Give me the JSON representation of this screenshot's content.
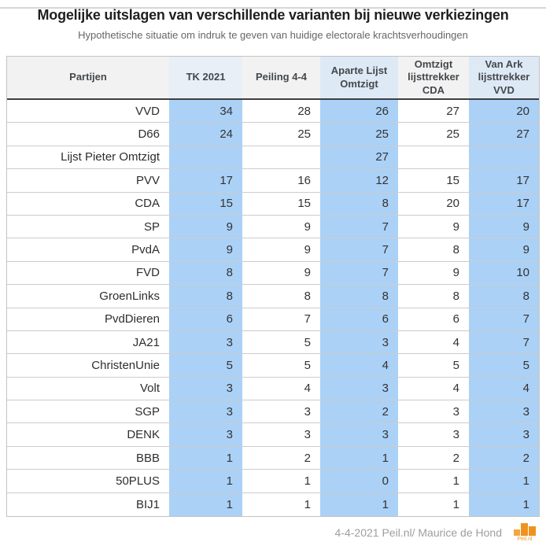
{
  "title": "Mogelijke uitslagen van verschillende varianten bij nieuwe verkiezingen",
  "subtitle": "Hypothetische situatie om indruk te geven van huidige electorale krachtsverhoudingen",
  "chart_data": {
    "type": "table",
    "title": "Mogelijke uitslagen van verschillende varianten bij nieuwe verkiezingen",
    "subtitle": "Hypothetische situatie om indruk te geven van huidige electorale krachtsverhoudingen",
    "columns": [
      {
        "label": "Partijen",
        "tint": "gray"
      },
      {
        "label": "TK 2021",
        "tint": "blue_light"
      },
      {
        "label": "Peiling 4-4",
        "tint": "gray"
      },
      {
        "label": "Aparte Lijst\nOmtzigt",
        "tint": "blue"
      },
      {
        "label": "Omtzigt\nlijsttrekker\nCDA",
        "tint": "gray"
      },
      {
        "label": "Van Ark\nlijsttrekker\nVVD",
        "tint": "blue"
      }
    ],
    "rows": [
      {
        "party": "VVD",
        "values": [
          34,
          28,
          26,
          27,
          20
        ]
      },
      {
        "party": "D66",
        "values": [
          24,
          25,
          25,
          25,
          27
        ]
      },
      {
        "party": "Lijst Pieter Omtzigt",
        "values": [
          null,
          null,
          27,
          null,
          null
        ]
      },
      {
        "party": "PVV",
        "values": [
          17,
          16,
          12,
          15,
          17
        ]
      },
      {
        "party": "CDA",
        "values": [
          15,
          15,
          8,
          20,
          17
        ]
      },
      {
        "party": "SP",
        "values": [
          9,
          9,
          7,
          9,
          9
        ]
      },
      {
        "party": "PvdA",
        "values": [
          9,
          9,
          7,
          8,
          9
        ]
      },
      {
        "party": "FVD",
        "values": [
          8,
          9,
          7,
          9,
          10
        ]
      },
      {
        "party": "GroenLinks",
        "values": [
          8,
          8,
          8,
          8,
          8
        ]
      },
      {
        "party": "PvdDieren",
        "values": [
          6,
          7,
          6,
          6,
          7
        ]
      },
      {
        "party": "JA21",
        "values": [
          3,
          5,
          3,
          4,
          7
        ]
      },
      {
        "party": "ChristenUnie",
        "values": [
          5,
          5,
          4,
          5,
          5
        ]
      },
      {
        "party": "Volt",
        "values": [
          3,
          4,
          3,
          4,
          4
        ]
      },
      {
        "party": "SGP",
        "values": [
          3,
          3,
          2,
          3,
          3
        ]
      },
      {
        "party": "DENK",
        "values": [
          3,
          3,
          3,
          3,
          3
        ]
      },
      {
        "party": "BBB",
        "values": [
          1,
          2,
          1,
          2,
          2
        ]
      },
      {
        "party": "50PLUS",
        "values": [
          1,
          1,
          0,
          1,
          1
        ]
      },
      {
        "party": "BIJ1",
        "values": [
          1,
          1,
          1,
          1,
          1
        ]
      }
    ]
  },
  "footer": {
    "credit": "4-4-2021 Peil.nl/ Maurice de Hond",
    "logo_text": "Peil.nl"
  },
  "colors": {
    "cell_blue": "#abd1f6",
    "header_blue": "#dee9f6",
    "header_blue_light": "#e8eff7",
    "header_gray": "#f2f2f2",
    "accent_orange": "#ef931f"
  }
}
